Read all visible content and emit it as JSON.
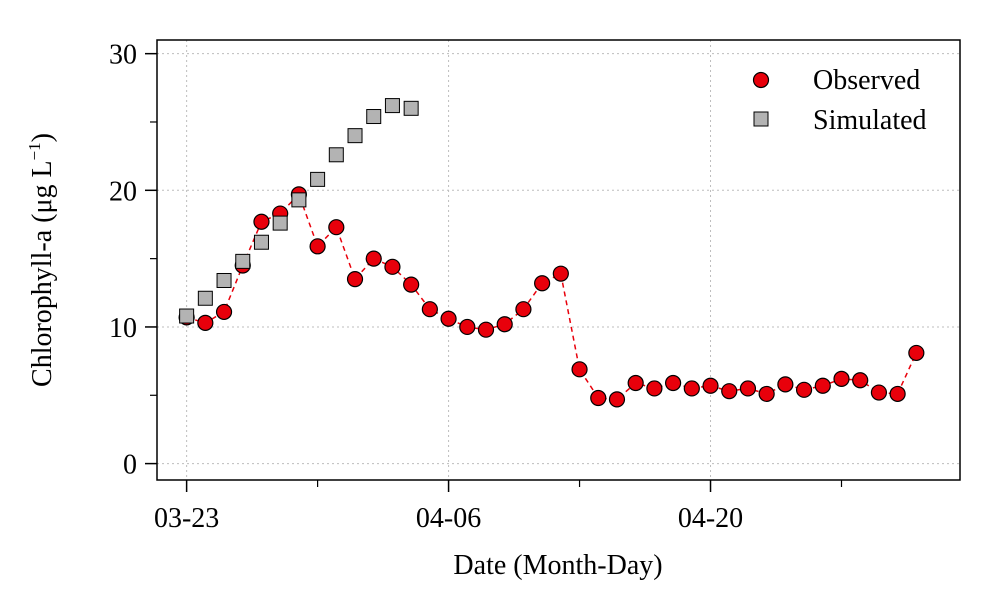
{
  "chart_data": {
    "type": "scatter",
    "xlabel": "Date (Month-Day)",
    "ylabel_main": "Chlorophyll-a (μg L",
    "ylabel_sup": "−1",
    "ylabel_close": ")",
    "xlim": [
      "2023-03-21T10:00",
      "2023-05-03T08:00"
    ],
    "ylim": [
      -1.2,
      31
    ],
    "xticks": [
      {
        "date": "2023-03-23",
        "label": "03-23"
      },
      {
        "date": "2023-04-06",
        "label": "04-06"
      },
      {
        "date": "2023-04-20",
        "label": "04-20"
      }
    ],
    "yticks": [
      0,
      10,
      20,
      30
    ],
    "minor_xticks": [
      "2023-03-30",
      "2023-04-13",
      "2023-04-27"
    ],
    "minor_yticks": [
      5,
      15,
      25
    ],
    "grid": true,
    "legend_position": "top-right",
    "series": [
      {
        "name": "Observed",
        "marker": "circle",
        "color": "#e8000b",
        "line": "dashed",
        "points": [
          {
            "x": "2023-03-23",
            "y": 10.7
          },
          {
            "x": "2023-03-24",
            "y": 10.3
          },
          {
            "x": "2023-03-25",
            "y": 11.1
          },
          {
            "x": "2023-03-26",
            "y": 14.5
          },
          {
            "x": "2023-03-27",
            "y": 17.7
          },
          {
            "x": "2023-03-28",
            "y": 18.3
          },
          {
            "x": "2023-03-29",
            "y": 19.7
          },
          {
            "x": "2023-03-30",
            "y": 15.9
          },
          {
            "x": "2023-03-31",
            "y": 17.3
          },
          {
            "x": "2023-04-01",
            "y": 13.5
          },
          {
            "x": "2023-04-02",
            "y": 15.0
          },
          {
            "x": "2023-04-03",
            "y": 14.4
          },
          {
            "x": "2023-04-04",
            "y": 13.1
          },
          {
            "x": "2023-04-05",
            "y": 11.3
          },
          {
            "x": "2023-04-06",
            "y": 10.6
          },
          {
            "x": "2023-04-07",
            "y": 10.0
          },
          {
            "x": "2023-04-08",
            "y": 9.8
          },
          {
            "x": "2023-04-09",
            "y": 10.2
          },
          {
            "x": "2023-04-10",
            "y": 11.3
          },
          {
            "x": "2023-04-11",
            "y": 13.2
          },
          {
            "x": "2023-04-12",
            "y": 13.9
          },
          {
            "x": "2023-04-13",
            "y": 6.9
          },
          {
            "x": "2023-04-14",
            "y": 4.8
          },
          {
            "x": "2023-04-15",
            "y": 4.7
          },
          {
            "x": "2023-04-16",
            "y": 5.9
          },
          {
            "x": "2023-04-17",
            "y": 5.5
          },
          {
            "x": "2023-04-18",
            "y": 5.9
          },
          {
            "x": "2023-04-19",
            "y": 5.5
          },
          {
            "x": "2023-04-20",
            "y": 5.7
          },
          {
            "x": "2023-04-21",
            "y": 5.3
          },
          {
            "x": "2023-04-22",
            "y": 5.5
          },
          {
            "x": "2023-04-23",
            "y": 5.1
          },
          {
            "x": "2023-04-24",
            "y": 5.8
          },
          {
            "x": "2023-04-25",
            "y": 5.4
          },
          {
            "x": "2023-04-26",
            "y": 5.7
          },
          {
            "x": "2023-04-27",
            "y": 6.2
          },
          {
            "x": "2023-04-28",
            "y": 6.1
          },
          {
            "x": "2023-04-29",
            "y": 5.2
          },
          {
            "x": "2023-04-30",
            "y": 5.1
          },
          {
            "x": "2023-05-01",
            "y": 8.1
          }
        ]
      },
      {
        "name": "Simulated",
        "marker": "square",
        "color": "#b3b3b3",
        "line": "none",
        "points": [
          {
            "x": "2023-03-23",
            "y": 10.8
          },
          {
            "x": "2023-03-24",
            "y": 12.1
          },
          {
            "x": "2023-03-25",
            "y": 13.4
          },
          {
            "x": "2023-03-26",
            "y": 14.8
          },
          {
            "x": "2023-03-27",
            "y": 16.2
          },
          {
            "x": "2023-03-28",
            "y": 17.6
          },
          {
            "x": "2023-03-29",
            "y": 19.3
          },
          {
            "x": "2023-03-30",
            "y": 20.8
          },
          {
            "x": "2023-03-31",
            "y": 22.6
          },
          {
            "x": "2023-04-01",
            "y": 24.0
          },
          {
            "x": "2023-04-02",
            "y": 25.4
          },
          {
            "x": "2023-04-03",
            "y": 26.2
          },
          {
            "x": "2023-04-04",
            "y": 26.0
          }
        ]
      }
    ]
  }
}
